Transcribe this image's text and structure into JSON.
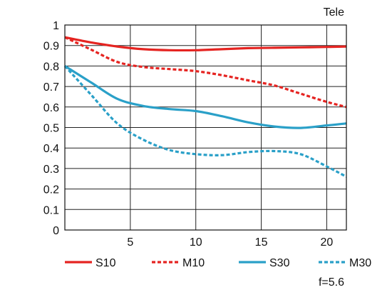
{
  "chart_data": {
    "type": "line",
    "title": "Tele",
    "xlabel": "",
    "ylabel": "",
    "xlim": [
      0,
      21.5
    ],
    "ylim": [
      0,
      1
    ],
    "grid": true,
    "legend_position": "bottom",
    "note": "f=5.6",
    "xticks": [
      5,
      10,
      15,
      20
    ],
    "yticks": [
      0,
      0.1,
      0.2,
      0.3,
      0.4,
      0.5,
      0.6,
      0.7,
      0.8,
      0.9,
      1
    ],
    "ytick_labels": [
      "0",
      "0.1",
      "0.2",
      "0.3",
      "0.4",
      "0.5",
      "0.6",
      "0.7",
      "0.8",
      "0.9",
      "1"
    ],
    "series": [
      {
        "name": "S10",
        "color": "#e52421",
        "style": "solid",
        "x": [
          0,
          2,
          4,
          6,
          8,
          10,
          12,
          14,
          16,
          18,
          20,
          21.5
        ],
        "y": [
          0.94,
          0.915,
          0.895,
          0.882,
          0.877,
          0.877,
          0.882,
          0.887,
          0.889,
          0.891,
          0.893,
          0.895
        ]
      },
      {
        "name": "M10",
        "color": "#e52421",
        "style": "dashed",
        "x": [
          0,
          2,
          4,
          6,
          8,
          10,
          12,
          14,
          16,
          18,
          20,
          21.5
        ],
        "y": [
          0.94,
          0.88,
          0.82,
          0.795,
          0.785,
          0.775,
          0.755,
          0.73,
          0.705,
          0.665,
          0.625,
          0.6
        ]
      },
      {
        "name": "S30",
        "color": "#2aa0c8",
        "style": "solid",
        "x": [
          0,
          2,
          4,
          6,
          8,
          10,
          12,
          14,
          16,
          18,
          20,
          21.5
        ],
        "y": [
          0.8,
          0.72,
          0.64,
          0.605,
          0.59,
          0.58,
          0.555,
          0.525,
          0.505,
          0.498,
          0.51,
          0.52
        ]
      },
      {
        "name": "M30",
        "color": "#2aa0c8",
        "style": "dashed",
        "x": [
          0,
          2,
          4,
          6,
          8,
          10,
          12,
          14,
          16,
          18,
          20,
          21.5
        ],
        "y": [
          0.8,
          0.66,
          0.52,
          0.44,
          0.39,
          0.37,
          0.365,
          0.38,
          0.385,
          0.37,
          0.31,
          0.26
        ]
      }
    ]
  }
}
